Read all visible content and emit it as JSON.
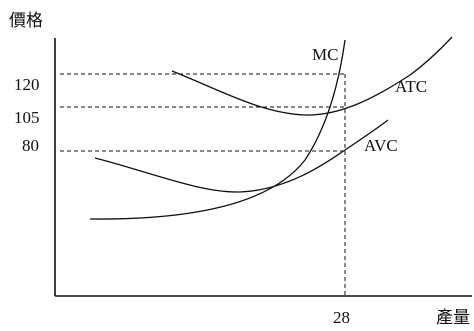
{
  "axes": {
    "y_title": "價格",
    "x_title": "產量"
  },
  "y_ticks": [
    "120",
    "105",
    "80"
  ],
  "x_ticks": [
    "28"
  ],
  "curves": {
    "mc": "MC",
    "atc": "ATC",
    "avc": "AVC"
  }
}
